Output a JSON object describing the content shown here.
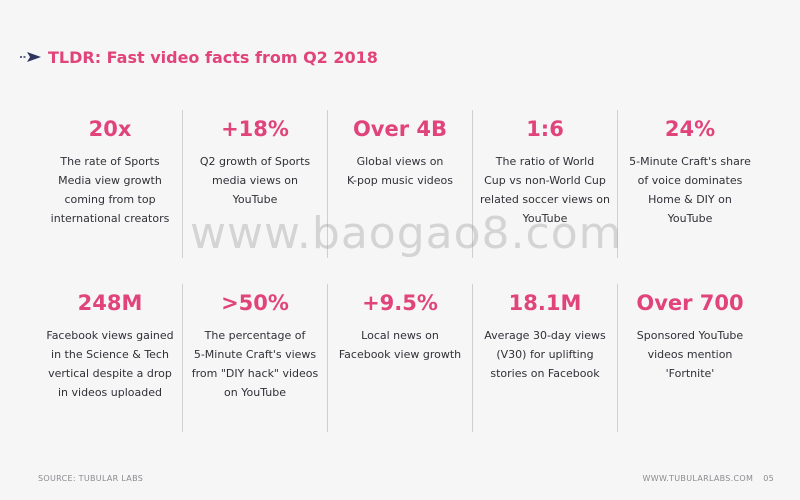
{
  "header": {
    "title": "TLDR: Fast video facts from Q2 2018",
    "icon": "arrow-icon",
    "accent_color": "#e0447a"
  },
  "facts": [
    [
      {
        "stat": "20x",
        "lines": [
          "The rate of Sports",
          "Media view growth",
          "coming from top",
          "international creators"
        ]
      },
      {
        "stat": "+18%",
        "lines": [
          "Q2 growth of Sports",
          "media views on",
          "YouTube"
        ]
      },
      {
        "stat": "Over 4B",
        "lines": [
          "Global views on",
          "K-pop music videos"
        ]
      },
      {
        "stat": "1:6",
        "lines": [
          "The ratio of World",
          "Cup vs non-World Cup",
          "related soccer views on",
          "YouTube"
        ]
      },
      {
        "stat": "24%",
        "lines": [
          "5-Minute Craft's share",
          "of voice dominates",
          "Home & DIY on",
          "YouTube"
        ]
      }
    ],
    [
      {
        "stat": "248M",
        "lines": [
          "Facebook views gained",
          "in the Science & Tech",
          "vertical despite a drop",
          "in videos uploaded"
        ]
      },
      {
        "stat": ">50%",
        "lines": [
          "The percentage of",
          "5-Minute Craft's views",
          "from \"DIY hack\" videos",
          "on YouTube"
        ]
      },
      {
        "stat": "+9.5%",
        "lines": [
          "Local news on",
          "Facebook view growth"
        ]
      },
      {
        "stat": "18.1M",
        "lines": [
          "Average 30-day views",
          "(V30) for uplifting",
          "stories on Facebook"
        ]
      },
      {
        "stat": "Over 700",
        "lines": [
          "Sponsored YouTube",
          "videos mention 'Fortnite'"
        ]
      }
    ]
  ],
  "watermark": "www.baogao8.com",
  "footer": {
    "source": "SOURCE: TUBULAR LABS",
    "site": "WWW.TUBULARLABS.COM",
    "page": "05"
  }
}
